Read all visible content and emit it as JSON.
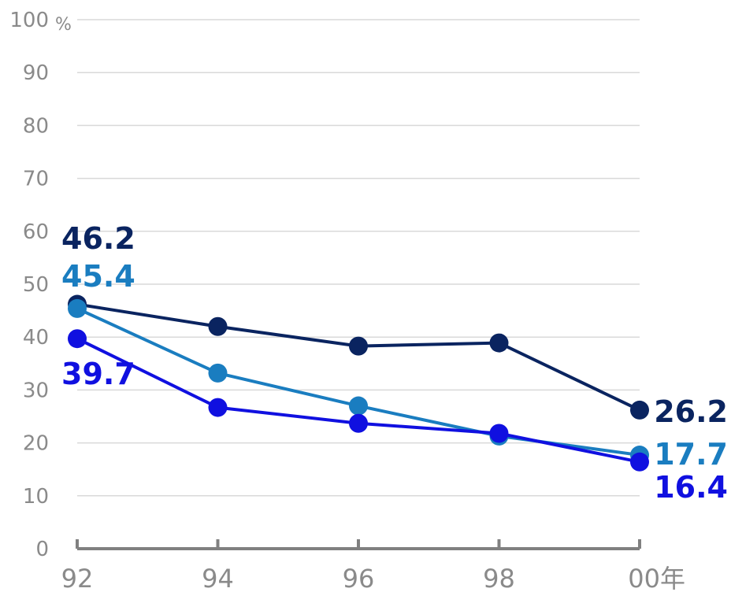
{
  "chart_data": {
    "type": "line",
    "x": [
      "92",
      "94",
      "96",
      "98",
      "00"
    ],
    "x_unit": "年",
    "y_unit": "%",
    "ylim": [
      0,
      100
    ],
    "yticks": [
      "0",
      "10",
      "20",
      "30",
      "40",
      "50",
      "60",
      "70",
      "80",
      "90",
      "100"
    ],
    "grid": true,
    "series": [
      {
        "color": "#0a2460",
        "values": [
          46.2,
          42.0,
          38.3,
          38.9,
          26.2
        ],
        "labels": [
          "46.2",
          "",
          "",
          "",
          "26.2"
        ]
      },
      {
        "color": "#1a7dc0",
        "values": [
          45.4,
          33.2,
          27.0,
          21.3,
          17.7
        ],
        "labels": [
          "45.4",
          "",
          "",
          "",
          "17.7"
        ]
      },
      {
        "color": "#1010e0",
        "values": [
          39.7,
          26.7,
          23.7,
          21.8,
          16.4
        ],
        "labels": [
          "39.7",
          "",
          "",
          "",
          "16.4"
        ]
      }
    ]
  }
}
